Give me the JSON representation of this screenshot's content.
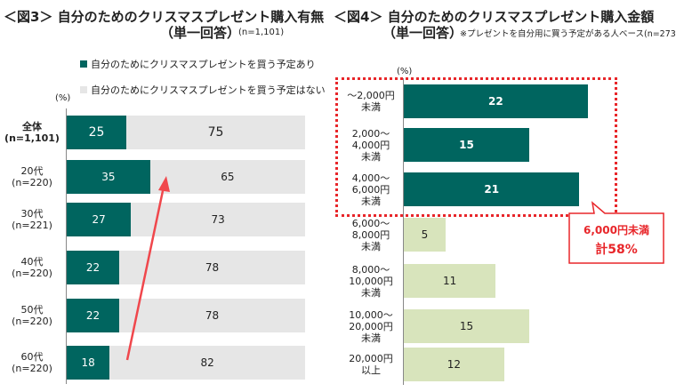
{
  "chart_data": [
    {
      "type": "bar",
      "orientation": "horizontal",
      "stacked": true,
      "title": "＜図3＞ 自分のためのクリスマスプレゼント購入有無",
      "subtitle": "（単一回答）",
      "note": "(n=1,101)",
      "unit": "(%)",
      "categories": [
        "全体\n(n=1,101)",
        "20代\n(n=220)",
        "30代\n(n=221)",
        "40代\n(n=220)",
        "50代\n(n=220)",
        "60代\n(n=220)"
      ],
      "series": [
        {
          "name": "自分のためにクリスマスプレゼントを買う予定あり",
          "values": [
            25,
            35,
            27,
            22,
            22,
            18
          ],
          "color": "#00655f"
        },
        {
          "name": "自分のためにクリスマスプレゼントを買う予定はない",
          "values": [
            75,
            65,
            73,
            78,
            78,
            82
          ],
          "color": "#e6e6e6"
        }
      ],
      "xlim": [
        0,
        100
      ],
      "legend": "top",
      "annotation": "red arrow rising from 60代 to 20代"
    },
    {
      "type": "bar",
      "orientation": "horizontal",
      "title": "＜図4＞ 自分のためのクリスマスプレゼント購入金額",
      "subtitle": "（単一回答）",
      "note": "※プレゼントを自分用に買う予定がある人ベース(n=273)",
      "unit": "(%)",
      "categories": [
        "～2,000円\n未満",
        "2,000～\n4,000円\n未満",
        "4,000～\n6,000円\n未満",
        "6,000～\n8,000円\n未満",
        "8,000～\n10,000円\n未満",
        "10,000～\n20,000円\n未満",
        "20,000円\n以上"
      ],
      "values": [
        22,
        15,
        21,
        5,
        11,
        15,
        12
      ],
      "colors": [
        "#00655f",
        "#00655f",
        "#00655f",
        "#d8e4bc",
        "#d8e4bc",
        "#d8e4bc",
        "#d8e4bc"
      ],
      "callout": {
        "line1": "6,000円未満",
        "line2": "計58%",
        "color": "#e8262a"
      }
    }
  ]
}
